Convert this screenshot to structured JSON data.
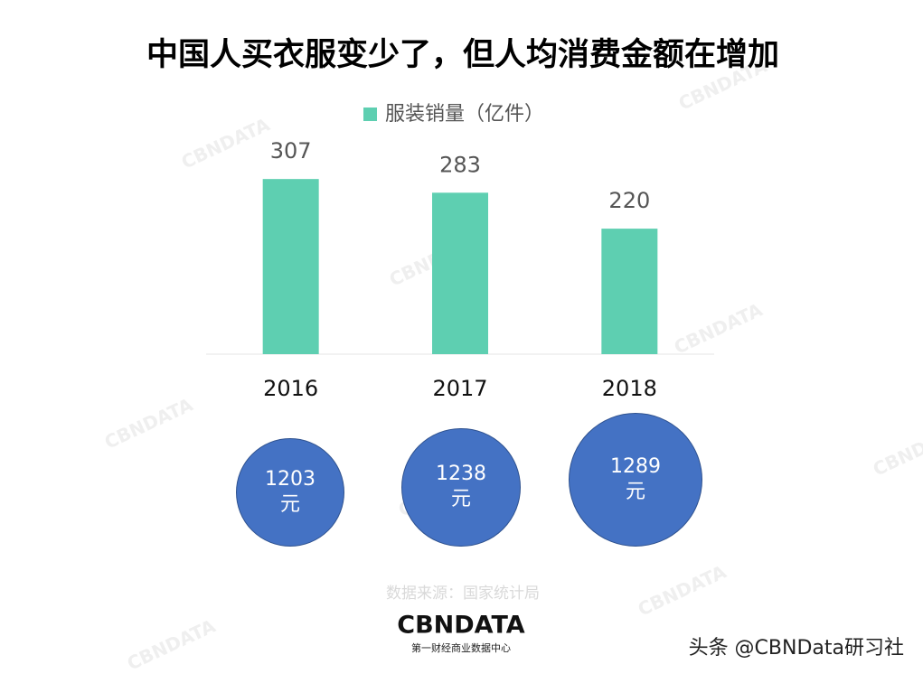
{
  "chart_data": [
    {
      "type": "bar",
      "title": "中国人买衣服变少了，但人均消费金额在增加",
      "categories": [
        "2016",
        "2017",
        "2018"
      ],
      "series": [
        {
          "name": "服装销量（亿件）",
          "color": "#5ecfb1",
          "values": [
            307,
            283,
            220
          ]
        }
      ],
      "ylim": [
        0,
        350
      ]
    },
    {
      "type": "bubble",
      "color": "#4472c4",
      "values": [
        1203,
        1238,
        1289
      ],
      "value_labels": [
        "1203\n元",
        "1238\n元",
        "1289\n元"
      ]
    }
  ],
  "source": "数据来源：国家统计局",
  "logo": {
    "name": "CBNDATA",
    "subtitle": "第一财经商业数据中心"
  },
  "watermark": "头条 @CBNData研习社",
  "background_mark": "CBNDATA"
}
